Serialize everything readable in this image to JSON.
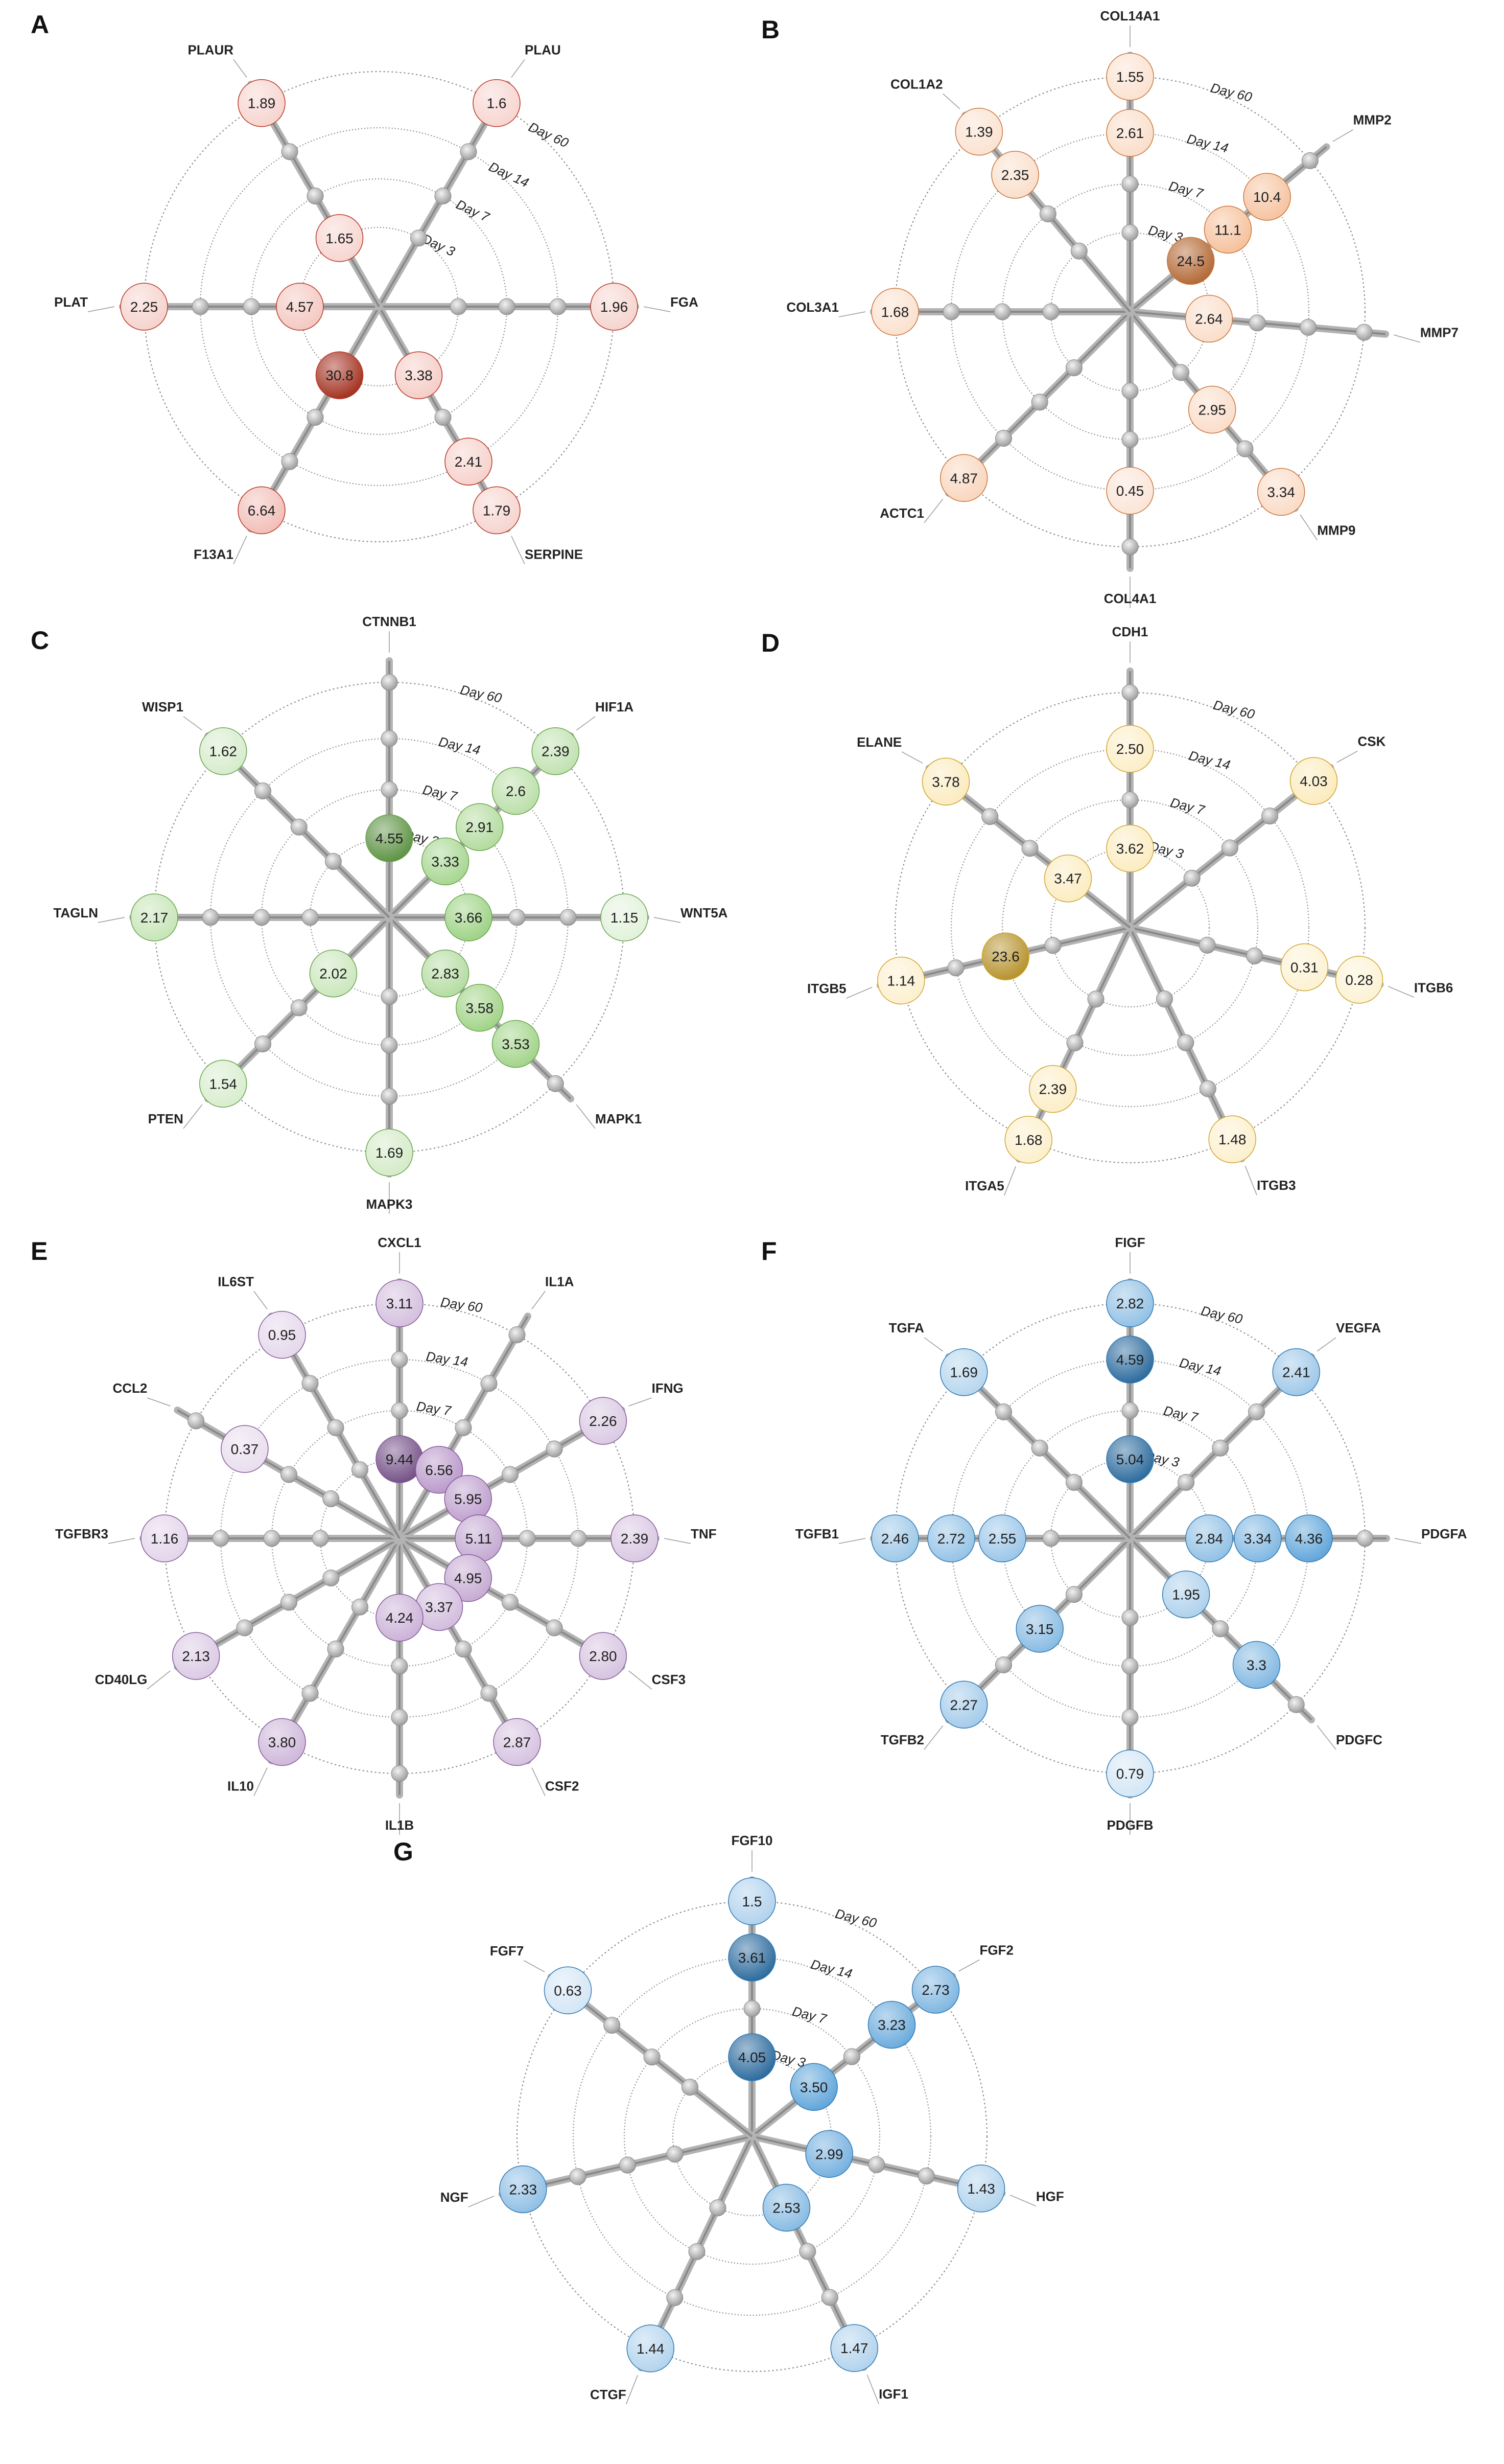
{
  "figure": {
    "rings": [
      "Day 3",
      "Day 7",
      "Day 14",
      "Day 60"
    ]
  },
  "chart_data": [
    {
      "panel": "A",
      "type": "radar-bubble",
      "color": "#d9412b",
      "axes": [
        "PLAU",
        "FGA",
        "SERPINE",
        "F13A1",
        "PLAT",
        "PLAUR"
      ],
      "values": [
        {
          "gene": "PLAU",
          "day": "Day 60",
          "value": "1.6"
        },
        {
          "gene": "PLAUR",
          "day": "Day 60",
          "value": "1.89"
        },
        {
          "gene": "PLAUR",
          "day": "Day 3",
          "value": "1.65"
        },
        {
          "gene": "PLAT",
          "day": "Day 60",
          "value": "2.25"
        },
        {
          "gene": "PLAT",
          "day": "Day 3",
          "value": "4.57"
        },
        {
          "gene": "FGA",
          "day": "Day 60",
          "value": "1.96"
        },
        {
          "gene": "F13A1",
          "day": "Day 3",
          "value": "30.8"
        },
        {
          "gene": "F13A1",
          "day": "Day 60",
          "value": "6.64"
        },
        {
          "gene": "SERPINE",
          "day": "Day 3",
          "value": "3.38"
        },
        {
          "gene": "SERPINE",
          "day": "Day 14",
          "value": "2.41"
        },
        {
          "gene": "SERPINE",
          "day": "Day 60",
          "value": "1.79"
        }
      ]
    },
    {
      "panel": "B",
      "type": "radar-bubble",
      "color": "#ee8a45",
      "axes": [
        "COL14A1",
        "MMP2",
        "MMP7",
        "MMP9",
        "COL4A1",
        "ACTC1",
        "COL3A1",
        "COL1A2"
      ],
      "values": [
        {
          "gene": "COL14A1",
          "day": "Day 60",
          "value": "1.55"
        },
        {
          "gene": "COL14A1",
          "day": "Day 14",
          "value": "2.61"
        },
        {
          "gene": "COL1A2",
          "day": "Day 60",
          "value": "1.39"
        },
        {
          "gene": "COL1A2",
          "day": "Day 14",
          "value": "2.35"
        },
        {
          "gene": "MMP2",
          "day": "Day 14",
          "value": "10.4"
        },
        {
          "gene": "MMP2",
          "day": "Day 7",
          "value": "11.1"
        },
        {
          "gene": "MMP2",
          "day": "Day 3",
          "value": "24.5"
        },
        {
          "gene": "COL3A1",
          "day": "Day 60",
          "value": "1.68"
        },
        {
          "gene": "MMP7",
          "day": "Day 3",
          "value": "2.64"
        },
        {
          "gene": "MMP9",
          "day": "Day 7",
          "value": "2.95"
        },
        {
          "gene": "MMP9",
          "day": "Day 60",
          "value": "3.34"
        },
        {
          "gene": "ACTC1",
          "day": "Day 60",
          "value": "4.87"
        },
        {
          "gene": "COL4A1",
          "day": "Day 14",
          "value": "0.45"
        }
      ]
    },
    {
      "panel": "C",
      "type": "radar-bubble",
      "color": "#7cc25a",
      "axes": [
        "CTNNB1",
        "HIF1A",
        "WNT5A",
        "MAPK1",
        "MAPK3",
        "PTEN",
        "TAGLN",
        "WISP1"
      ],
      "values": [
        {
          "gene": "WISP1",
          "day": "Day 60",
          "value": "1.62"
        },
        {
          "gene": "HIF1A",
          "day": "Day 60",
          "value": "2.39"
        },
        {
          "gene": "HIF1A",
          "day": "Day 14",
          "value": "2.6"
        },
        {
          "gene": "HIF1A",
          "day": "Day 7",
          "value": "2.91"
        },
        {
          "gene": "HIF1A",
          "day": "Day 3",
          "value": "3.33"
        },
        {
          "gene": "CTNNB1",
          "day": "Day 3",
          "value": "4.55"
        },
        {
          "gene": "TAGLN",
          "day": "Day 60",
          "value": "2.17"
        },
        {
          "gene": "WNT5A",
          "day": "Day 3",
          "value": "3.66"
        },
        {
          "gene": "WNT5A",
          "day": "Day 60",
          "value": "1.15"
        },
        {
          "gene": "PTEN",
          "day": "Day 3",
          "value": "2.02"
        },
        {
          "gene": "MAPK1",
          "day": "Day 3",
          "value": "2.83"
        },
        {
          "gene": "MAPK1",
          "day": "Day 7",
          "value": "3.58"
        },
        {
          "gene": "MAPK1",
          "day": "Day 14",
          "value": "3.53"
        },
        {
          "gene": "PTEN",
          "day": "Day 60",
          "value": "1.54"
        },
        {
          "gene": "MAPK3",
          "day": "Day 60",
          "value": "1.69"
        }
      ]
    },
    {
      "panel": "D",
      "type": "radar-bubble",
      "color": "#f3c33a",
      "axes": [
        "CDH1",
        "CSK",
        "ITGB6",
        "ITGB3",
        "ITGA5",
        "ITGB5",
        "ELANE"
      ],
      "values": [
        {
          "gene": "CDH1",
          "day": "Day 14",
          "value": "2.50"
        },
        {
          "gene": "CDH1",
          "day": "Day 3",
          "value": "3.62"
        },
        {
          "gene": "ELANE",
          "day": "Day 60",
          "value": "3.78"
        },
        {
          "gene": "CSK",
          "day": "Day 60",
          "value": "4.03"
        },
        {
          "gene": "ELANE",
          "day": "Day 3",
          "value": "3.47"
        },
        {
          "gene": "ITGB5",
          "day": "Day 7",
          "value": "23.6"
        },
        {
          "gene": "ITGB5",
          "day": "Day 60",
          "value": "1.14"
        },
        {
          "gene": "ITGB6",
          "day": "Day 14",
          "value": "0.31"
        },
        {
          "gene": "ITGB6",
          "day": "Day 60",
          "value": "0.28"
        },
        {
          "gene": "ITGA5",
          "day": "Day 14",
          "value": "2.39"
        },
        {
          "gene": "ITGA5",
          "day": "Day 60",
          "value": "1.68"
        },
        {
          "gene": "ITGB3",
          "day": "Day 60",
          "value": "1.48"
        }
      ]
    },
    {
      "panel": "E",
      "type": "radar-bubble",
      "color": "#9b6bb3",
      "axes": [
        "CXCL1",
        "IL1A",
        "IFNG",
        "TNF",
        "CSF3",
        "CSF2",
        "IL1B",
        "IL10",
        "CD40LG",
        "TGFBR3",
        "CCL2",
        "IL6ST"
      ],
      "values": [
        {
          "gene": "CXCL1",
          "day": "Day 60",
          "value": "3.11"
        },
        {
          "gene": "IL6ST",
          "day": "Day 60",
          "value": "0.95"
        },
        {
          "gene": "IFNG",
          "day": "Day 60",
          "value": "2.26"
        },
        {
          "gene": "CCL2",
          "day": "Day 14",
          "value": "0.37"
        },
        {
          "gene": "CXCL1",
          "day": "Day 3",
          "value": "9.44"
        },
        {
          "gene": "IL1A",
          "day": "Day 3",
          "value": "6.56"
        },
        {
          "gene": "IFNG",
          "day": "Day 3",
          "value": "5.95"
        },
        {
          "gene": "TNF",
          "day": "Day 3",
          "value": "5.11"
        },
        {
          "gene": "TNF",
          "day": "Day 60",
          "value": "2.39"
        },
        {
          "gene": "TGFBR3",
          "day": "Day 60",
          "value": "1.16"
        },
        {
          "gene": "CSF3",
          "day": "Day 3",
          "value": "4.95"
        },
        {
          "gene": "CSF2",
          "day": "Day 3",
          "value": "3.37"
        },
        {
          "gene": "IL1B",
          "day": "Day 3",
          "value": "4.24"
        },
        {
          "gene": "CD40LG",
          "day": "Day 60",
          "value": "2.13"
        },
        {
          "gene": "CSF3",
          "day": "Day 60",
          "value": "2.80"
        },
        {
          "gene": "CSF2",
          "day": "Day 60",
          "value": "2.87"
        },
        {
          "gene": "IL10",
          "day": "Day 60",
          "value": "3.80"
        }
      ]
    },
    {
      "panel": "F",
      "type": "radar-bubble",
      "color": "#3a8fd1",
      "axes": [
        "FIGF",
        "VEGFA",
        "PDGFA",
        "PDGFC",
        "PDGFB",
        "TGFB2",
        "TGFB1",
        "TGFA"
      ],
      "values": [
        {
          "gene": "FIGF",
          "day": "Day 60",
          "value": "2.82"
        },
        {
          "gene": "FIGF",
          "day": "Day 14",
          "value": "4.59"
        },
        {
          "gene": "TGFA",
          "day": "Day 60",
          "value": "1.69"
        },
        {
          "gene": "VEGFA",
          "day": "Day 60",
          "value": "2.41"
        },
        {
          "gene": "FIGF",
          "day": "Day 3",
          "value": "5.04"
        },
        {
          "gene": "TGFB1",
          "day": "Day 60",
          "value": "2.46"
        },
        {
          "gene": "TGFB1",
          "day": "Day 14",
          "value": "2.72"
        },
        {
          "gene": "TGFB1",
          "day": "Day 7",
          "value": "2.55"
        },
        {
          "gene": "PDGFA",
          "day": "Day 3",
          "value": "2.84"
        },
        {
          "gene": "PDGFA",
          "day": "Day 7",
          "value": "3.34"
        },
        {
          "gene": "PDGFA",
          "day": "Day 14",
          "value": "4.36"
        },
        {
          "gene": "TGFB2",
          "day": "Day 7",
          "value": "3.15"
        },
        {
          "gene": "PDGFC",
          "day": "Day 3",
          "value": "1.95"
        },
        {
          "gene": "PDGFC",
          "day": "Day 14",
          "value": "3.3"
        },
        {
          "gene": "TGFB2",
          "day": "Day 60",
          "value": "2.27"
        },
        {
          "gene": "PDGFB",
          "day": "Day 60",
          "value": "0.79"
        }
      ]
    },
    {
      "panel": "G",
      "type": "radar-bubble",
      "color": "#3a8fd1",
      "axes": [
        "FGF10",
        "FGF2",
        "HGF",
        "IGF1",
        "CTGF",
        "NGF",
        "FGF7"
      ],
      "values": [
        {
          "gene": "FGF10",
          "day": "Day 60",
          "value": "1.5"
        },
        {
          "gene": "FGF10",
          "day": "Day 14",
          "value": "3.61"
        },
        {
          "gene": "FGF2",
          "day": "Day 60",
          "value": "2.73"
        },
        {
          "gene": "FGF2",
          "day": "Day 14",
          "value": "3.23"
        },
        {
          "gene": "FGF7",
          "day": "Day 60",
          "value": "0.63"
        },
        {
          "gene": "FGF10",
          "day": "Day 3",
          "value": "4.05"
        },
        {
          "gene": "FGF2",
          "day": "Day 3",
          "value": "3.50"
        },
        {
          "gene": "HGF",
          "day": "Day 3",
          "value": "2.99"
        },
        {
          "gene": "HGF",
          "day": "Day 60",
          "value": "1.43"
        },
        {
          "gene": "NGF",
          "day": "Day 60",
          "value": "2.33"
        },
        {
          "gene": "IGF1",
          "day": "Day 3",
          "value": "2.53"
        },
        {
          "gene": "CTGF",
          "day": "Day 60",
          "value": "1.44"
        },
        {
          "gene": "IGF1",
          "day": "Day 60",
          "value": "1.47"
        }
      ]
    }
  ]
}
